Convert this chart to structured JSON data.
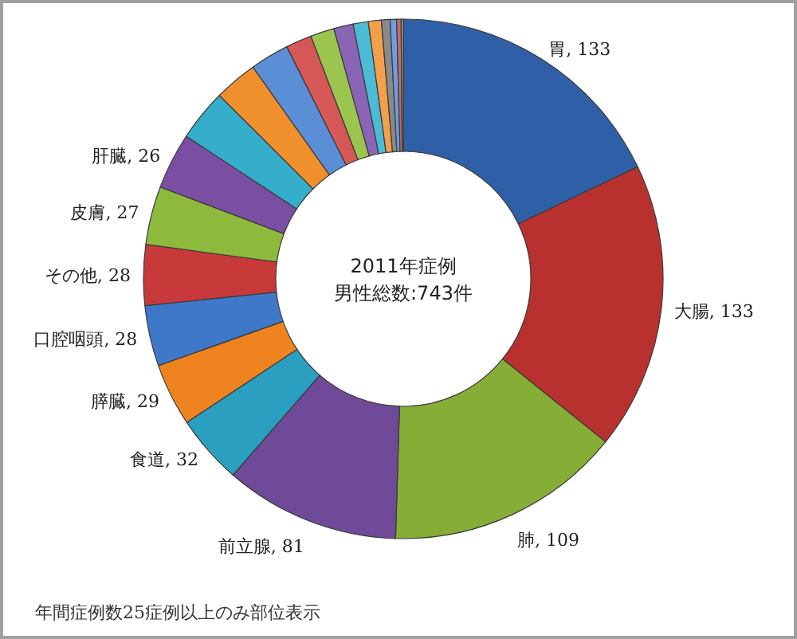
{
  "chart_data": {
    "type": "donut",
    "title": "2011年症例",
    "subtitle": "男性総数:743件",
    "annotations": [
      "年間症例数25症例以上のみ部位表示"
    ],
    "categories": [
      "胃",
      "大腸",
      "肺",
      "前立腺",
      "食道",
      "膵臓",
      "口腔咽頭",
      "その他",
      "皮膚",
      "肝臓",
      null,
      null,
      null,
      null,
      null,
      null,
      null,
      null,
      null,
      null,
      null,
      null
    ],
    "values": [
      133,
      133,
      109,
      81,
      32,
      29,
      28,
      28,
      27,
      26,
      24,
      20,
      18,
      12,
      11,
      9,
      7,
      6,
      4,
      3,
      2,
      1
    ],
    "colors": [
      "#2f5fa6",
      "#b8312f",
      "#86ad35",
      "#6e4a98",
      "#2a9fc0",
      "#ee8320",
      "#3f78c8",
      "#c8393a",
      "#8dba3c",
      "#7a4fa3",
      "#35aecb",
      "#f0902c",
      "#5a8fd6",
      "#d55756",
      "#9cc54f",
      "#8b65b5",
      "#4bbbd6",
      "#f3a04a",
      "#8a8a8a",
      "#6d9ee0",
      "#c46a6a",
      "#a0a0a0"
    ],
    "value_labels": [
      "133",
      "133",
      "109",
      "81",
      "32",
      "29",
      "28",
      "28",
      "27",
      "26",
      null,
      null,
      null,
      null,
      null,
      null,
      null,
      null,
      null,
      null,
      null,
      null
    ]
  }
}
